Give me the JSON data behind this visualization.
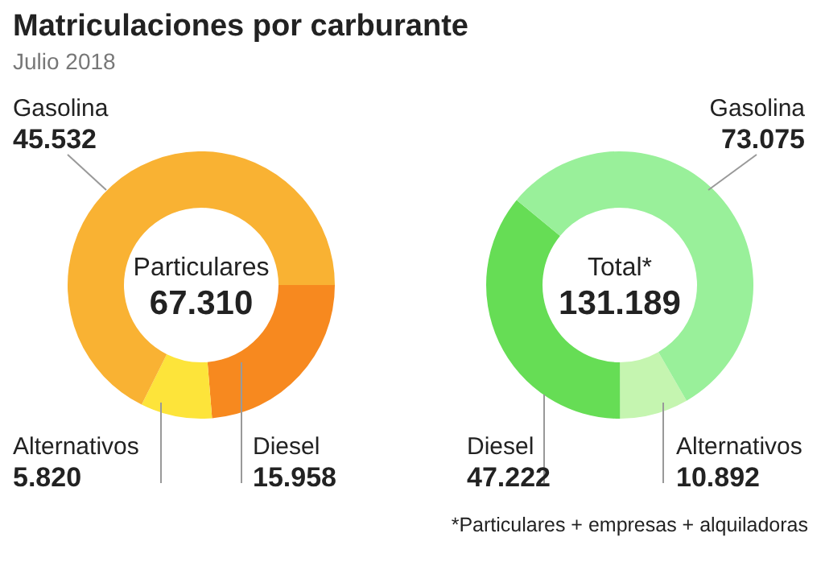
{
  "chart_data": [
    {
      "type": "donut",
      "title": "Matriculaciones por carburante",
      "subtitle": "Julio 2018",
      "categories": [
        "Gasolina",
        "Diesel",
        "Alternativos"
      ],
      "values": [
        45532,
        15958,
        5820
      ],
      "value_labels": [
        "45.532",
        "15.958",
        "5.820"
      ],
      "colors": [
        "#f9b233",
        "#f7891f",
        "#fde43a"
      ],
      "annotations": [
        "Particulares",
        "67.310"
      ]
    },
    {
      "type": "donut",
      "categories": [
        "Gasolina",
        "Diesel",
        "Alternativos"
      ],
      "values": [
        73075,
        47222,
        10892
      ],
      "value_labels": [
        "73.075",
        "47.222",
        "10.892"
      ],
      "colors": [
        "#99f09a",
        "#66dd55",
        "#c5f5b0"
      ],
      "annotations": [
        "Total*",
        "131.189",
        "*Particulares + empresas + alquiladoras"
      ]
    }
  ]
}
